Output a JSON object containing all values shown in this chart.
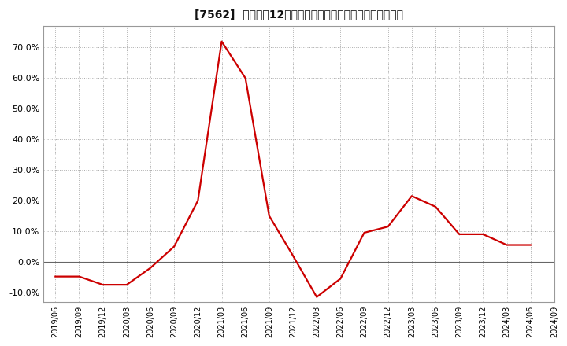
{
  "title": "[7562]  売上高の12か月移動合計の対前年同期増減率の推移",
  "line_color": "#cc0000",
  "background_color": "#ffffff",
  "plot_bg_color": "#ffffff",
  "grid_color": "#aaaaaa",
  "dates": [
    "2019/06",
    "2019/09",
    "2019/12",
    "2020/03",
    "2020/06",
    "2020/09",
    "2020/12",
    "2021/03",
    "2021/06",
    "2021/09",
    "2021/12",
    "2022/03",
    "2022/06",
    "2022/09",
    "2022/12",
    "2023/03",
    "2023/06",
    "2023/09",
    "2023/12",
    "2024/03",
    "2024/06"
  ],
  "values": [
    -0.048,
    -0.048,
    -0.075,
    -0.075,
    -0.02,
    0.05,
    0.2,
    0.72,
    0.6,
    0.15,
    0.02,
    -0.115,
    -0.055,
    0.095,
    0.115,
    0.215,
    0.18,
    0.09,
    0.09,
    0.055,
    0.055
  ],
  "yticks": [
    -0.1,
    0.0,
    0.1,
    0.2,
    0.3,
    0.4,
    0.5,
    0.6,
    0.7
  ],
  "ylim": [
    -0.13,
    0.77
  ],
  "xtick_labels": [
    "2019/06",
    "2019/09",
    "2019/12",
    "2020/03",
    "2020/06",
    "2020/09",
    "2020/12",
    "2021/03",
    "2021/06",
    "2021/09",
    "2021/12",
    "2022/03",
    "2022/06",
    "2022/09",
    "2022/12",
    "2023/03",
    "2023/06",
    "2023/09",
    "2023/12",
    "2024/03",
    "2024/06",
    "2024/09"
  ],
  "title_fontsize": 10,
  "tick_fontsize": 7,
  "ytick_fontsize": 8,
  "line_width": 1.6
}
